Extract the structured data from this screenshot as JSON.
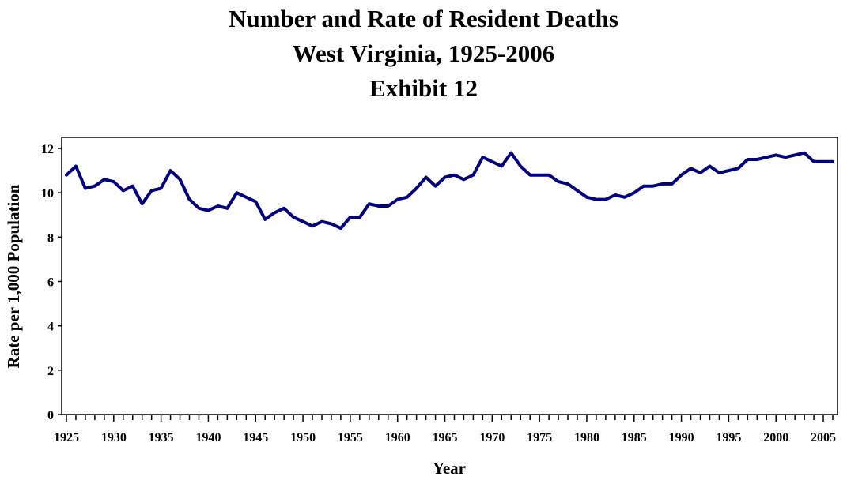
{
  "chart_data": {
    "type": "line",
    "title_lines": [
      "Number and Rate of Resident Deaths",
      "West Virginia, 1925-2006",
      "Exhibit 12"
    ],
    "xlabel": "Year",
    "ylabel": "Rate per 1,000 Population",
    "xlim": [
      1925,
      2006
    ],
    "ylim": [
      0,
      12
    ],
    "yticks": [
      0,
      2,
      4,
      6,
      8,
      10,
      12
    ],
    "xticks": [
      1925,
      1930,
      1935,
      1940,
      1945,
      1950,
      1955,
      1960,
      1965,
      1970,
      1975,
      1980,
      1985,
      1990,
      1995,
      2000,
      2005
    ],
    "grid": false,
    "legend": "none",
    "line_color": "#000080",
    "x": [
      1925,
      1926,
      1927,
      1928,
      1929,
      1930,
      1931,
      1932,
      1933,
      1934,
      1935,
      1936,
      1937,
      1938,
      1939,
      1940,
      1941,
      1942,
      1943,
      1944,
      1945,
      1946,
      1947,
      1948,
      1949,
      1950,
      1951,
      1952,
      1953,
      1954,
      1955,
      1956,
      1957,
      1958,
      1959,
      1960,
      1961,
      1962,
      1963,
      1964,
      1965,
      1966,
      1967,
      1968,
      1969,
      1970,
      1971,
      1972,
      1973,
      1974,
      1975,
      1976,
      1977,
      1978,
      1979,
      1980,
      1981,
      1982,
      1983,
      1984,
      1985,
      1986,
      1987,
      1988,
      1989,
      1990,
      1991,
      1992,
      1993,
      1994,
      1995,
      1996,
      1997,
      1998,
      1999,
      2000,
      2001,
      2002,
      2003,
      2004,
      2005,
      2006
    ],
    "values": [
      10.8,
      11.2,
      10.2,
      10.3,
      10.6,
      10.5,
      10.1,
      10.3,
      9.5,
      10.1,
      10.2,
      11.0,
      10.6,
      9.7,
      9.3,
      9.2,
      9.4,
      9.3,
      10.0,
      9.8,
      9.6,
      8.8,
      9.1,
      9.3,
      8.9,
      8.7,
      8.5,
      8.7,
      8.6,
      8.4,
      8.9,
      8.9,
      9.5,
      9.4,
      9.4,
      9.7,
      9.8,
      10.2,
      10.7,
      10.3,
      10.7,
      10.8,
      10.6,
      10.8,
      11.6,
      11.4,
      11.2,
      11.8,
      11.2,
      10.8,
      10.8,
      10.8,
      10.5,
      10.4,
      10.1,
      9.8,
      9.7,
      9.7,
      9.9,
      9.8,
      10.0,
      10.3,
      10.3,
      10.4,
      10.4,
      10.8,
      11.1,
      10.9,
      11.2,
      10.9,
      11.0,
      11.1,
      11.5,
      11.5,
      11.6,
      11.7,
      11.6,
      11.7,
      11.8,
      11.4,
      11.4,
      11.4
    ]
  }
}
